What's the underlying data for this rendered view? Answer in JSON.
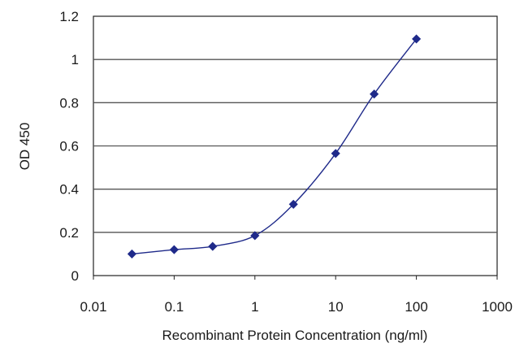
{
  "chart_data": {
    "type": "line",
    "title": "",
    "xlabel": "Recombinant Protein Concentration (ng/ml)",
    "ylabel": "OD 450",
    "xscale": "log",
    "xlim": [
      0.01,
      1000
    ],
    "ylim": [
      0,
      1.2
    ],
    "x_ticks": [
      "0.01",
      "0.1",
      "1",
      "10",
      "100",
      "1000"
    ],
    "y_ticks": [
      "0",
      "0.2",
      "0.4",
      "0.6",
      "0.8",
      "1",
      "1.2"
    ],
    "grid": "horizontal",
    "legend": "none",
    "series": [
      {
        "x": [
          0.03,
          0.1,
          0.3,
          1,
          3,
          10,
          30,
          100
        ],
        "y": [
          0.1,
          0.12,
          0.135,
          0.185,
          0.33,
          0.565,
          0.84,
          1.095
        ],
        "color": "#1f2a8a",
        "marker": "diamond"
      }
    ]
  }
}
